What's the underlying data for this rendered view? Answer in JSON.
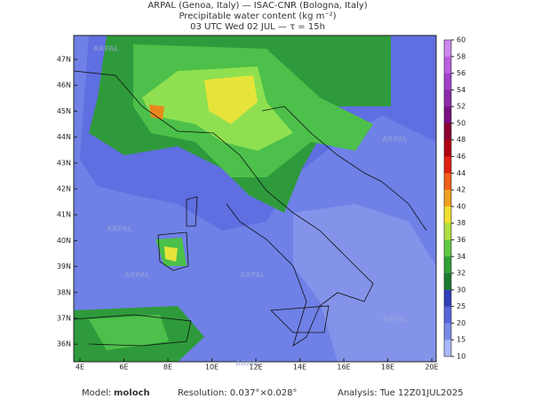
{
  "header": {
    "line1": "ARPAL (Genoa, Italy)  —  ISAC-CNR (Bologna, Italy)",
    "line2": "Precipitable water content (kg m⁻²)",
    "line3": "03 UTC Wed 02 JUL  —  τ = 15h"
  },
  "longitude_labels": [
    "4E",
    "6E",
    "8E",
    "10E",
    "12E",
    "14E",
    "16E",
    "18E",
    "20E"
  ],
  "latitude_labels": [
    "47N",
    "46N",
    "45N",
    "44N",
    "43N",
    "42N",
    "41N",
    "40N",
    "39N",
    "38N",
    "37N",
    "36N"
  ],
  "colorbar": {
    "labels": [
      "60",
      "58",
      "56",
      "54",
      "52",
      "50",
      "48",
      "46",
      "44",
      "42",
      "40",
      "38",
      "36",
      "34",
      "32",
      "30",
      "25",
      "20",
      "15",
      "10"
    ],
    "colors": [
      "#cc88ee",
      "#b860e0",
      "#a040c8",
      "#8a2aa8",
      "#7a1080",
      "#8a0030",
      "#b00010",
      "#e02010",
      "#f06018",
      "#f0a020",
      "#f0e030",
      "#b0e040",
      "#60c840",
      "#30a038",
      "#1a7a30",
      "#3040b8",
      "#5565d8",
      "#7888e8",
      "#a8b8f8"
    ]
  },
  "watermark": "ARPAL",
  "footer": {
    "model_label": "Model:",
    "model": "moloch",
    "resolution": "Resolution: 0.037°×0.028°",
    "analysis": "Analysis: Tue 12Z01JUL2025"
  }
}
